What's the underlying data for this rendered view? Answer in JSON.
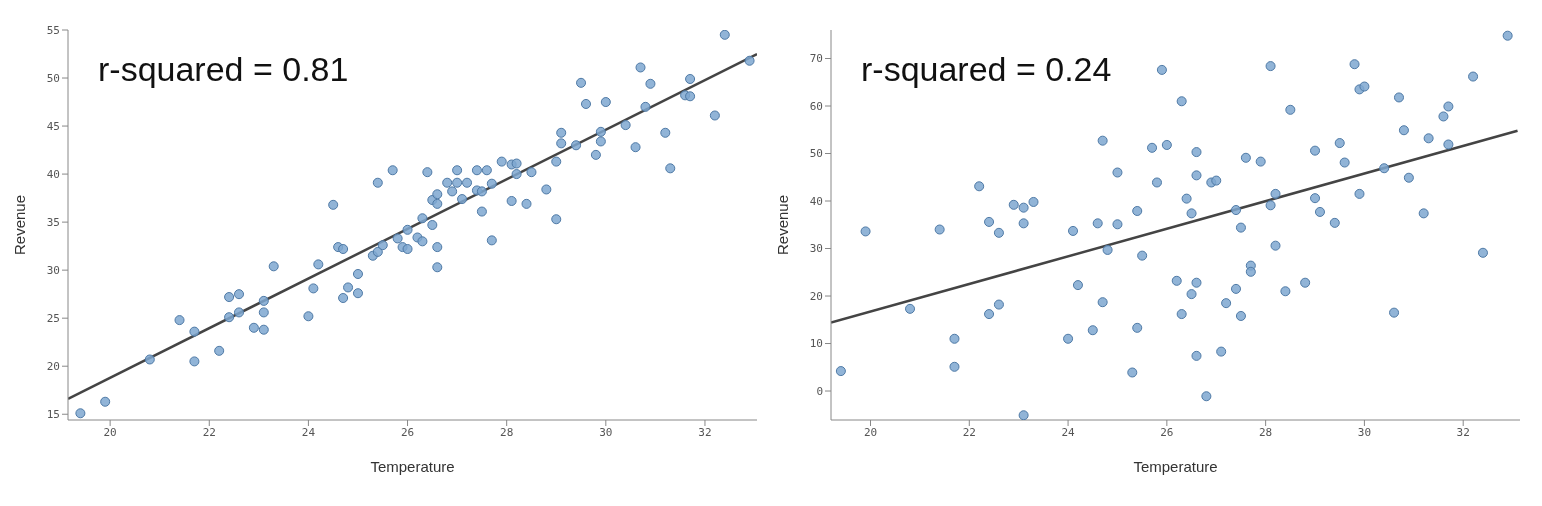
{
  "chart_data": [
    {
      "type": "scatter",
      "xlabel": "Temperature",
      "ylabel": "Revenue",
      "annotations": [
        "r-squared = 0.81"
      ],
      "xlim": [
        19.15,
        33.05
      ],
      "ylim": [
        14.4,
        55
      ],
      "xticks": [
        20,
        22,
        24,
        26,
        28,
        30,
        32
      ],
      "yticks": [
        15,
        20,
        25,
        30,
        35,
        40,
        45,
        50,
        55
      ],
      "series": [
        {
          "marker": "circle",
          "color": "#7ea7d0",
          "x": [
            19.4,
            19.9,
            20.8,
            21.4,
            21.7,
            21.7,
            22.2,
            22.4,
            22.4,
            22.6,
            22.6,
            22.9,
            23.1,
            23.1,
            23.1,
            23.3,
            24.0,
            24.1,
            24.2,
            24.5,
            24.6,
            24.7,
            24.7,
            24.8,
            25.0,
            25.0,
            25.3,
            25.4,
            25.4,
            25.5,
            25.7,
            25.8,
            25.9,
            26.0,
            26.0,
            26.2,
            26.3,
            26.3,
            26.4,
            26.5,
            26.5,
            26.6,
            26.6,
            26.6,
            26.6,
            26.8,
            26.9,
            27.0,
            27.0,
            27.1,
            27.2,
            27.4,
            27.4,
            27.5,
            27.5,
            27.6,
            27.7,
            27.7,
            27.9,
            28.1,
            28.2,
            28.1,
            28.2,
            28.4,
            28.5,
            28.8,
            29.0,
            29.0,
            29.1,
            29.1,
            29.4,
            29.5,
            29.6,
            29.8,
            29.9,
            29.9,
            30.0,
            30.4,
            30.6,
            30.7,
            30.8,
            30.9,
            31.2,
            31.3,
            31.6,
            31.7,
            31.7,
            32.2,
            32.4,
            32.9
          ],
          "values": [
            15.1,
            16.3,
            20.7,
            24.8,
            23.6,
            20.5,
            21.6,
            27.2,
            25.1,
            27.5,
            25.6,
            24.0,
            26.8,
            25.6,
            23.8,
            30.4,
            25.2,
            28.1,
            30.6,
            36.8,
            32.4,
            32.2,
            27.1,
            28.2,
            29.6,
            27.6,
            31.5,
            31.9,
            39.1,
            32.6,
            40.4,
            33.3,
            32.4,
            32.2,
            34.2,
            33.4,
            33.0,
            35.4,
            40.2,
            37.3,
            34.7,
            37.9,
            36.9,
            32.4,
            30.3,
            39.1,
            38.2,
            39.1,
            40.4,
            37.4,
            39.1,
            40.4,
            38.3,
            38.2,
            36.1,
            40.4,
            39.0,
            33.1,
            41.3,
            41.0,
            41.1,
            37.2,
            40.0,
            36.9,
            40.2,
            38.4,
            41.3,
            35.3,
            44.3,
            43.2,
            43.0,
            49.5,
            47.3,
            42.0,
            44.4,
            43.4,
            47.5,
            45.1,
            42.8,
            51.1,
            47.0,
            49.4,
            44.3,
            40.6,
            48.2,
            48.1,
            49.9,
            46.1,
            54.5,
            51.8
          ]
        },
        {
          "type": "line",
          "color": "#444444",
          "x": [
            19.15,
            33.05
          ],
          "values": [
            16.6,
            52.5
          ]
        }
      ]
    },
    {
      "type": "scatter",
      "xlabel": "Temperature",
      "ylabel": "Revenue",
      "annotations": [
        "r-squared = 0.24"
      ],
      "xlim": [
        19.2,
        33.15
      ],
      "ylim": [
        -6.1,
        76
      ],
      "xticks": [
        20,
        22,
        24,
        26,
        28,
        30,
        32
      ],
      "yticks": [
        0,
        10,
        20,
        30,
        40,
        50,
        60,
        70
      ],
      "series": [
        {
          "marker": "circle",
          "color": "#7ea7d0",
          "x": [
            19.4,
            19.9,
            20.8,
            21.4,
            21.7,
            21.7,
            22.2,
            22.4,
            22.4,
            22.6,
            22.6,
            22.9,
            23.1,
            23.1,
            23.1,
            23.3,
            24.0,
            24.1,
            24.2,
            24.5,
            24.6,
            24.7,
            24.7,
            24.8,
            25.0,
            25.0,
            25.3,
            25.4,
            25.4,
            25.5,
            25.7,
            25.9,
            26.0,
            25.8,
            26.2,
            26.3,
            26.3,
            26.4,
            26.5,
            26.5,
            26.6,
            26.6,
            26.6,
            26.6,
            26.8,
            26.9,
            27.0,
            27.1,
            27.2,
            27.4,
            27.4,
            27.5,
            27.5,
            27.6,
            27.7,
            27.7,
            27.9,
            28.1,
            28.1,
            28.2,
            28.2,
            28.4,
            28.5,
            28.8,
            29.0,
            29.0,
            29.1,
            29.4,
            29.5,
            29.6,
            29.8,
            29.9,
            30.0,
            29.9,
            30.4,
            30.6,
            30.7,
            30.8,
            30.9,
            31.2,
            31.3,
            31.6,
            31.7,
            31.7,
            32.2,
            32.4,
            32.9
          ],
          "values": [
            4.2,
            33.6,
            17.3,
            34.0,
            11.0,
            5.1,
            43.1,
            35.6,
            16.2,
            33.3,
            18.2,
            39.2,
            38.6,
            35.3,
            -5.1,
            39.8,
            11.0,
            33.7,
            22.3,
            12.8,
            35.3,
            52.7,
            18.7,
            29.7,
            46.0,
            35.1,
            3.9,
            37.9,
            13.3,
            28.5,
            51.2,
            67.6,
            51.8,
            43.9,
            23.2,
            61.0,
            16.2,
            40.5,
            37.4,
            20.4,
            50.3,
            45.4,
            22.8,
            7.4,
            -1.1,
            43.9,
            44.3,
            8.3,
            18.5,
            38.1,
            21.5,
            34.4,
            15.8,
            49.1,
            26.4,
            25.1,
            48.3,
            68.4,
            39.1,
            41.5,
            30.6,
            21.0,
            59.2,
            22.8,
            50.6,
            40.6,
            37.7,
            35.4,
            52.2,
            48.1,
            68.8,
            63.5,
            64.1,
            41.5,
            46.9,
            16.5,
            61.8,
            54.9,
            44.9,
            37.4,
            53.2,
            57.8,
            59.9,
            51.9,
            66.2,
            29.1,
            74.8
          ]
        },
        {
          "type": "line",
          "color": "#444444",
          "x": [
            19.2,
            33.1
          ],
          "values": [
            14.4,
            54.8
          ]
        }
      ]
    }
  ]
}
